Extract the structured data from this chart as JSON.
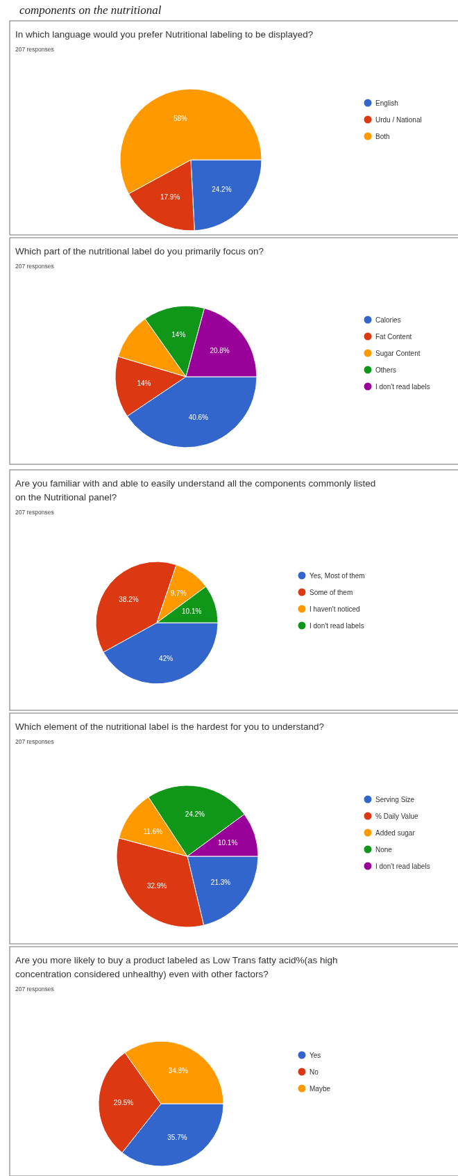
{
  "chart_data": [
    {
      "type": "pie",
      "title": "In which language would you prefer Nutritional labeling to be displayed?",
      "subtitle": "207 responses",
      "annotations": [
        "components on the nutritional"
      ],
      "categories": [
        "English",
        "Urdu / National",
        "Both"
      ],
      "values": [
        24.2,
        17.9,
        58
      ],
      "colors": [
        "#3366cc",
        "#dc3912",
        "#ff9900"
      ],
      "value_labels": [
        "24.2%",
        "17.9%",
        "58%"
      ],
      "legend": "right"
    },
    {
      "type": "pie",
      "title": "Which part of the nutritional label do you primarily focus on?",
      "subtitle": "207 responses",
      "categories": [
        "Calories",
        "Fat Content",
        "Sugar Content",
        "Others",
        "I don't read labels"
      ],
      "values": [
        40.6,
        14,
        10.6,
        14,
        20.8
      ],
      "colors": [
        "#3366cc",
        "#dc3912",
        "#ff9900",
        "#109618",
        "#990099"
      ],
      "value_labels": [
        "40.6%",
        "14%",
        null,
        "14%",
        "20.8%"
      ],
      "legend": "right"
    },
    {
      "type": "pie",
      "title": "Are you familiar with and able to easily understand all the components commonly listed on the Nutritional panel?",
      "subtitle": "207 responses",
      "categories": [
        "Yes, Most of them",
        "Some of them",
        "I haven't noticed",
        "I don't read labels"
      ],
      "values": [
        42,
        38.2,
        9.7,
        10.1
      ],
      "colors": [
        "#3366cc",
        "#dc3912",
        "#ff9900",
        "#109618"
      ],
      "value_labels": [
        "42%",
        "38.2%",
        "9.7%",
        "10.1%"
      ],
      "legend": "right"
    },
    {
      "type": "pie",
      "title": "Which element of the nutritional label is the hardest for you to understand?",
      "subtitle": "207 responses",
      "categories": [
        "Serving Size",
        "% Daily Value",
        "Added sugar",
        "None",
        "I don't read labels"
      ],
      "values": [
        21.3,
        32.9,
        11.6,
        24.2,
        10.1
      ],
      "colors": [
        "#3366cc",
        "#dc3912",
        "#ff9900",
        "#109618",
        "#990099"
      ],
      "value_labels": [
        "21.3%",
        "32.9%",
        "11.6%",
        "24.2%",
        "10.1%"
      ],
      "legend": "right"
    },
    {
      "type": "pie",
      "title": "Are you more likely to buy a product labeled as Low Trans fatty acid%(as high concentration considered unhealthy) even with other factors?",
      "subtitle": "207 responses",
      "categories": [
        "Yes",
        "No",
        "Maybe"
      ],
      "values": [
        35.7,
        29.5,
        34.8
      ],
      "colors": [
        "#3366cc",
        "#dc3912",
        "#ff9900"
      ],
      "value_labels": [
        "35.7%",
        "29.5%",
        "34.8%"
      ],
      "legend": "right"
    }
  ]
}
